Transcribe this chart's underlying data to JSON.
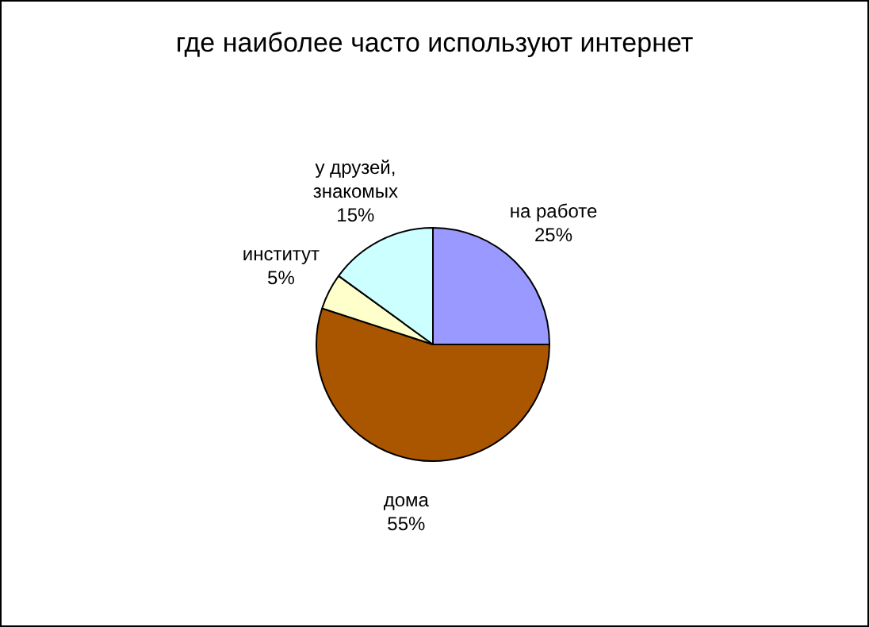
{
  "chart_data": {
    "type": "pie",
    "title": "где наиболее часто используют интернет",
    "categories": [
      "на работе",
      "дома",
      "институт",
      "у друзей, знакомых"
    ],
    "values": [
      25,
      55,
      5,
      15
    ],
    "colors": [
      "#9999ff",
      "#aa5500",
      "#ffffcc",
      "#ccffff"
    ],
    "value_labels": [
      "25%",
      "55%",
      "5%",
      "15%"
    ],
    "legend": false
  }
}
